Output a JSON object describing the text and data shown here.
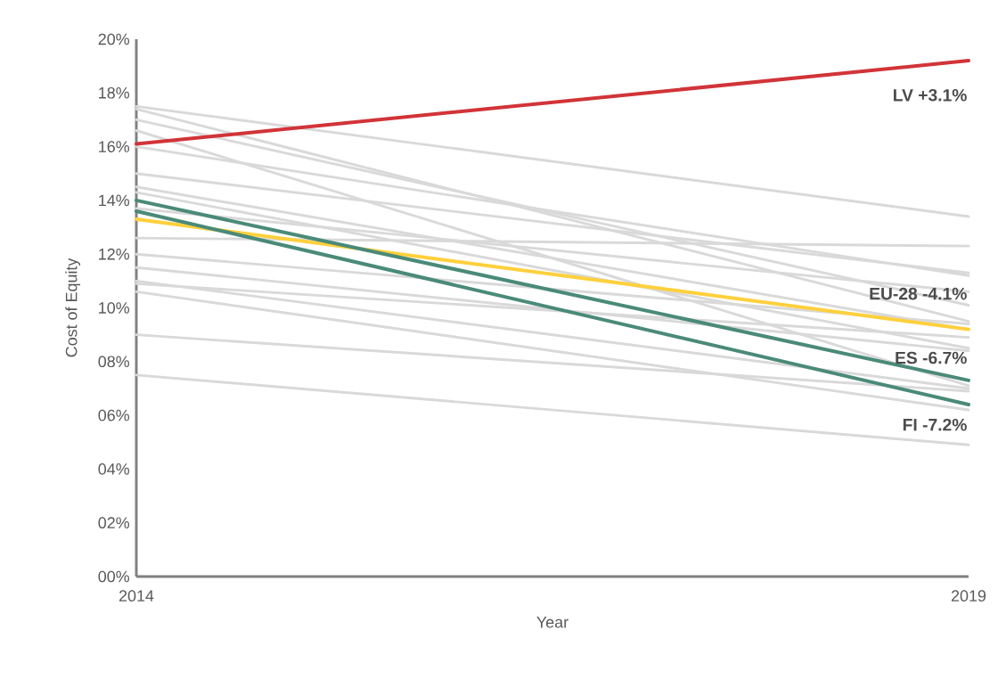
{
  "chart_data": {
    "type": "line",
    "xlabel": "Year",
    "ylabel": "Cost of Equity",
    "x": [
      2014,
      2019
    ],
    "xlim": [
      2014,
      2019
    ],
    "xticks": [
      2014,
      2019
    ],
    "ylim": [
      0,
      20
    ],
    "yticks": [
      {
        "value": 0,
        "label": "00%"
      },
      {
        "value": 2,
        "label": "02%"
      },
      {
        "value": 4,
        "label": "04%"
      },
      {
        "value": 6,
        "label": "06%"
      },
      {
        "value": 8,
        "label": "08%"
      },
      {
        "value": 10,
        "label": "10%"
      },
      {
        "value": 12,
        "label": "12%"
      },
      {
        "value": 14,
        "label": "14%"
      },
      {
        "value": 16,
        "label": "16%"
      },
      {
        "value": 18,
        "label": "18%"
      },
      {
        "value": 20,
        "label": "20%"
      }
    ],
    "grid": false,
    "legend": false,
    "marker": "none",
    "line_style": "solid",
    "series": [
      {
        "color": "#d9d9d9",
        "values": [
          17.5,
          13.4
        ]
      },
      {
        "color": "#d9d9d9",
        "values": [
          17.4,
          9.5
        ]
      },
      {
        "color": "#d9d9d9",
        "values": [
          17.0,
          10.1
        ]
      },
      {
        "color": "#d9d9d9",
        "values": [
          16.6,
          7.1
        ]
      },
      {
        "color": "#d9d9d9",
        "values": [
          16.0,
          11.2
        ]
      },
      {
        "color": "#d9d9d9",
        "values": [
          15.0,
          11.3
        ]
      },
      {
        "color": "#d9d9d9",
        "values": [
          14.5,
          9.2
        ]
      },
      {
        "color": "#d9d9d9",
        "values": [
          14.3,
          8.5
        ]
      },
      {
        "color": "#d9d9d9",
        "values": [
          13.7,
          10.6
        ]
      },
      {
        "color": "#d9d9d9",
        "values": [
          12.6,
          12.3
        ]
      },
      {
        "color": "#d9d9d9",
        "values": [
          12.0,
          9.4
        ]
      },
      {
        "color": "#d9d9d9",
        "values": [
          11.5,
          8.4
        ]
      },
      {
        "color": "#d9d9d9",
        "values": [
          11.0,
          7.0
        ]
      },
      {
        "color": "#d9d9d9",
        "values": [
          10.9,
          8.9
        ]
      },
      {
        "color": "#d9d9d9",
        "values": [
          10.6,
          6.2
        ]
      },
      {
        "color": "#d9d9d9",
        "values": [
          9.0,
          6.9
        ]
      },
      {
        "color": "#d9d9d9",
        "values": [
          7.5,
          4.9
        ]
      },
      {
        "name": "LV +3.1%",
        "color": "#d13438",
        "values": [
          16.1,
          19.2
        ]
      },
      {
        "name": "EU-28 -4.1%",
        "color": "#ffd03c",
        "values": [
          13.3,
          9.2
        ]
      },
      {
        "name": "ES -6.7%",
        "color": "#4a8a78",
        "values": [
          14.0,
          7.3
        ]
      },
      {
        "name": "FI -7.2%",
        "color": "#4a8a78",
        "values": [
          13.6,
          6.4
        ]
      }
    ]
  }
}
